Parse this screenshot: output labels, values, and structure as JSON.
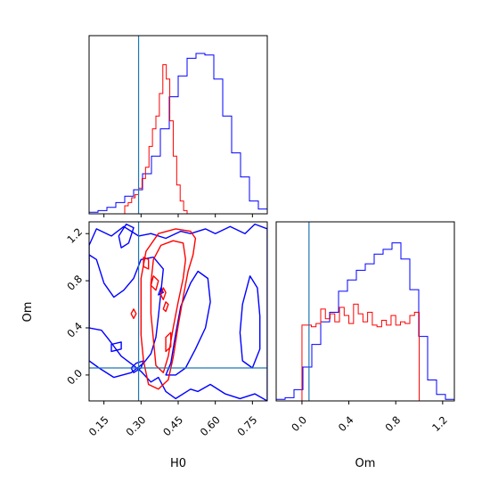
{
  "chart_data": {
    "type": "corner",
    "parameters": [
      "H0",
      "Om"
    ],
    "truth": {
      "H0": 0.29,
      "Om": 0.06
    },
    "colors": {
      "blue": "#0000ff",
      "red": "#ff0000",
      "truth": "#1f77b4"
    },
    "ranges": {
      "H0": [
        0.09,
        0.81
      ],
      "Om": [
        -0.22,
        1.3
      ]
    },
    "ticks": {
      "H0": [
        0.15,
        0.3,
        0.45,
        0.6,
        0.75
      ],
      "H0_labels": [
        "0.15",
        "0.30",
        "0.45",
        "0.60",
        "0.75"
      ],
      "Om": [
        0.0,
        0.4,
        0.8,
        1.2
      ],
      "Om_labels": [
        "0.0",
        "0.4",
        "0.8",
        "1.2"
      ]
    },
    "xlabels": {
      "H0": "H0",
      "Om": "Om"
    },
    "ylabel_2d": "Om",
    "hist_H0": {
      "edges": [
        0.09,
        0.126,
        0.162,
        0.198,
        0.234,
        0.27,
        0.306,
        0.342,
        0.378,
        0.414,
        0.45,
        0.486,
        0.522,
        0.558,
        0.594,
        0.63,
        0.666,
        0.702,
        0.738,
        0.774,
        0.81
      ],
      "series": [
        {
          "name": "blue",
          "counts": [
            0.01,
            0.02,
            0.04,
            0.07,
            0.11,
            0.15,
            0.25,
            0.36,
            0.53,
            0.73,
            0.86,
            0.97,
            1.0,
            0.99,
            0.84,
            0.61,
            0.38,
            0.23,
            0.08,
            0.03
          ]
        },
        {
          "name": "red",
          "bins": [
            [
              0.234,
              0.248,
              0.05
            ],
            [
              0.248,
              0.262,
              0.07
            ],
            [
              0.262,
              0.276,
              0.1
            ],
            [
              0.276,
              0.29,
              0.12
            ],
            [
              0.29,
              0.304,
              0.16
            ],
            [
              0.304,
              0.318,
              0.22
            ],
            [
              0.318,
              0.332,
              0.29
            ],
            [
              0.332,
              0.346,
              0.42
            ],
            [
              0.346,
              0.36,
              0.53
            ],
            [
              0.36,
              0.374,
              0.61
            ],
            [
              0.374,
              0.388,
              0.75
            ],
            [
              0.388,
              0.402,
              0.93
            ],
            [
              0.402,
              0.416,
              0.84
            ],
            [
              0.416,
              0.43,
              0.58
            ],
            [
              0.43,
              0.444,
              0.36
            ],
            [
              0.444,
              0.458,
              0.18
            ],
            [
              0.458,
              0.472,
              0.08
            ],
            [
              0.472,
              0.486,
              0.02
            ]
          ]
        }
      ]
    },
    "hist_Om": {
      "edges": [
        -0.22,
        -0.144,
        -0.068,
        0.008,
        0.084,
        0.16,
        0.236,
        0.312,
        0.388,
        0.464,
        0.54,
        0.616,
        0.692,
        0.768,
        0.844,
        0.92,
        0.996,
        1.072,
        1.148,
        1.224,
        1.3
      ],
      "series": [
        {
          "name": "blue",
          "counts": [
            0.01,
            0.02,
            0.07,
            0.21,
            0.35,
            0.49,
            0.55,
            0.68,
            0.75,
            0.81,
            0.85,
            0.91,
            0.94,
            0.98,
            0.88,
            0.69,
            0.4,
            0.13,
            0.04,
            0.01
          ]
        },
        {
          "name": "red",
          "bins": [
            [
              0.0,
              0.04,
              0.47
            ],
            [
              0.04,
              0.08,
              0.47
            ],
            [
              0.08,
              0.12,
              0.46
            ],
            [
              0.12,
              0.16,
              0.48
            ],
            [
              0.16,
              0.2,
              0.57
            ],
            [
              0.2,
              0.24,
              0.51
            ],
            [
              0.24,
              0.28,
              0.54
            ],
            [
              0.28,
              0.32,
              0.49
            ],
            [
              0.32,
              0.36,
              0.58
            ],
            [
              0.36,
              0.4,
              0.53
            ],
            [
              0.4,
              0.44,
              0.48
            ],
            [
              0.44,
              0.48,
              0.6
            ],
            [
              0.48,
              0.52,
              0.54
            ],
            [
              0.52,
              0.56,
              0.49
            ],
            [
              0.56,
              0.6,
              0.55
            ],
            [
              0.6,
              0.64,
              0.47
            ],
            [
              0.64,
              0.68,
              0.46
            ],
            [
              0.68,
              0.72,
              0.5
            ],
            [
              0.72,
              0.76,
              0.47
            ],
            [
              0.76,
              0.8,
              0.53
            ],
            [
              0.8,
              0.84,
              0.47
            ],
            [
              0.84,
              0.88,
              0.49
            ],
            [
              0.88,
              0.92,
              0.48
            ],
            [
              0.92,
              0.96,
              0.53
            ],
            [
              0.96,
              1.0,
              0.55
            ]
          ]
        }
      ]
    },
    "contours": [
      {
        "color": "blue",
        "closed": true,
        "points": [
          [
            0.09,
            1.1
          ],
          [
            0.12,
            1.24
          ],
          [
            0.18,
            1.18
          ],
          [
            0.23,
            1.26
          ],
          [
            0.29,
            1.18
          ],
          [
            0.34,
            1.2
          ],
          [
            0.4,
            1.16
          ],
          [
            0.46,
            1.22
          ],
          [
            0.5,
            1.2
          ],
          [
            0.56,
            1.24
          ],
          [
            0.6,
            1.2
          ],
          [
            0.66,
            1.26
          ],
          [
            0.72,
            1.2
          ],
          [
            0.76,
            1.28
          ],
          [
            0.81,
            1.24
          ],
          [
            0.81,
            -0.22
          ],
          [
            0.76,
            -0.16
          ],
          [
            0.7,
            -0.2
          ],
          [
            0.64,
            -0.16
          ],
          [
            0.58,
            -0.08
          ],
          [
            0.53,
            -0.14
          ],
          [
            0.5,
            -0.12
          ],
          [
            0.44,
            -0.2
          ],
          [
            0.4,
            -0.14
          ],
          [
            0.37,
            -0.02
          ],
          [
            0.34,
            -0.06
          ],
          [
            0.3,
            0.03
          ],
          [
            0.27,
            0.08
          ],
          [
            0.22,
            0.16
          ],
          [
            0.17,
            0.3
          ],
          [
            0.14,
            0.38
          ],
          [
            0.09,
            0.4
          ]
        ]
      },
      {
        "color": "blue",
        "closed": true,
        "points": [
          [
            0.09,
            0.12
          ],
          [
            0.13,
            0.06
          ],
          [
            0.19,
            -0.02
          ],
          [
            0.26,
            0.02
          ],
          [
            0.31,
            0.1
          ],
          [
            0.34,
            0.18
          ],
          [
            0.36,
            0.32
          ],
          [
            0.37,
            0.5
          ],
          [
            0.38,
            0.7
          ],
          [
            0.39,
            0.9
          ],
          [
            0.35,
            1.0
          ],
          [
            0.3,
            0.98
          ],
          [
            0.27,
            0.82
          ],
          [
            0.23,
            0.72
          ],
          [
            0.19,
            0.66
          ],
          [
            0.15,
            0.78
          ],
          [
            0.12,
            0.98
          ],
          [
            0.09,
            1.02
          ]
        ]
      },
      {
        "color": "blue",
        "closed": true,
        "points": [
          [
            0.4,
            0.0
          ],
          [
            0.42,
            0.1
          ],
          [
            0.44,
            0.35
          ],
          [
            0.46,
            0.58
          ],
          [
            0.5,
            0.78
          ],
          [
            0.53,
            0.88
          ],
          [
            0.57,
            0.82
          ],
          [
            0.58,
            0.62
          ],
          [
            0.56,
            0.4
          ],
          [
            0.52,
            0.22
          ],
          [
            0.48,
            0.06
          ],
          [
            0.44,
            0.0
          ]
        ]
      },
      {
        "color": "blue",
        "closed": true,
        "points": [
          [
            0.71,
            0.12
          ],
          [
            0.75,
            0.06
          ],
          [
            0.78,
            0.22
          ],
          [
            0.78,
            0.5
          ],
          [
            0.77,
            0.74
          ],
          [
            0.74,
            0.84
          ],
          [
            0.71,
            0.6
          ],
          [
            0.7,
            0.36
          ]
        ]
      },
      {
        "color": "blue",
        "closed": true,
        "points": [
          [
            0.22,
            1.08
          ],
          [
            0.25,
            1.12
          ],
          [
            0.27,
            1.25
          ],
          [
            0.24,
            1.28
          ],
          [
            0.21,
            1.18
          ]
        ]
      },
      {
        "color": "blue",
        "closed": true,
        "points": [
          [
            0.18,
            0.2
          ],
          [
            0.22,
            0.22
          ],
          [
            0.22,
            0.28
          ],
          [
            0.18,
            0.26
          ]
        ]
      },
      {
        "color": "blue",
        "closed": true,
        "points": [
          [
            0.27,
            0.02
          ],
          [
            0.3,
            0.06
          ],
          [
            0.31,
            0.12
          ],
          [
            0.28,
            0.1
          ],
          [
            0.26,
            0.06
          ]
        ]
      },
      {
        "color": "blue",
        "closed": true,
        "points": [
          [
            0.37,
            0.68
          ],
          [
            0.39,
            0.7
          ],
          [
            0.38,
            0.74
          ]
        ]
      },
      {
        "color": "red",
        "closed": true,
        "points": [
          [
            0.33,
            -0.08
          ],
          [
            0.37,
            -0.12
          ],
          [
            0.41,
            -0.04
          ],
          [
            0.43,
            0.15
          ],
          [
            0.45,
            0.42
          ],
          [
            0.47,
            0.66
          ],
          [
            0.49,
            0.88
          ],
          [
            0.51,
            1.02
          ],
          [
            0.52,
            1.16
          ],
          [
            0.5,
            1.22
          ],
          [
            0.44,
            1.24
          ],
          [
            0.37,
            1.2
          ],
          [
            0.32,
            1.05
          ],
          [
            0.3,
            0.82
          ],
          [
            0.3,
            0.58
          ],
          [
            0.3,
            0.34
          ],
          [
            0.31,
            0.12
          ]
        ]
      },
      {
        "color": "red",
        "closed": true,
        "points": [
          [
            0.36,
            0.08
          ],
          [
            0.39,
            0.02
          ],
          [
            0.41,
            0.16
          ],
          [
            0.43,
            0.4
          ],
          [
            0.45,
            0.62
          ],
          [
            0.47,
            0.82
          ],
          [
            0.48,
            0.98
          ],
          [
            0.47,
            1.12
          ],
          [
            0.43,
            1.14
          ],
          [
            0.38,
            1.1
          ],
          [
            0.35,
            0.98
          ],
          [
            0.34,
            0.78
          ],
          [
            0.34,
            0.52
          ],
          [
            0.35,
            0.3
          ]
        ]
      },
      {
        "color": "red",
        "closed": true,
        "points": [
          [
            0.4,
            0.2
          ],
          [
            0.42,
            0.24
          ],
          [
            0.42,
            0.36
          ],
          [
            0.4,
            0.32
          ]
        ]
      },
      {
        "color": "red",
        "closed": true,
        "points": [
          [
            0.34,
            0.76
          ],
          [
            0.36,
            0.72
          ],
          [
            0.37,
            0.8
          ],
          [
            0.35,
            0.84
          ]
        ]
      },
      {
        "color": "red",
        "closed": true,
        "points": [
          [
            0.38,
            0.68
          ],
          [
            0.39,
            0.64
          ],
          [
            0.4,
            0.7
          ],
          [
            0.39,
            0.74
          ]
        ]
      },
      {
        "color": "red",
        "closed": true,
        "points": [
          [
            0.31,
            0.92
          ],
          [
            0.33,
            0.9
          ],
          [
            0.33,
            0.98
          ],
          [
            0.31,
            1.0
          ]
        ]
      },
      {
        "color": "red",
        "closed": true,
        "points": [
          [
            0.27,
            0.48
          ],
          [
            0.28,
            0.52
          ],
          [
            0.27,
            0.56
          ],
          [
            0.26,
            0.52
          ]
        ]
      },
      {
        "color": "red",
        "closed": true,
        "points": [
          [
            0.39,
            0.56
          ],
          [
            0.4,
            0.54
          ],
          [
            0.41,
            0.6
          ],
          [
            0.4,
            0.62
          ]
        ]
      }
    ]
  }
}
